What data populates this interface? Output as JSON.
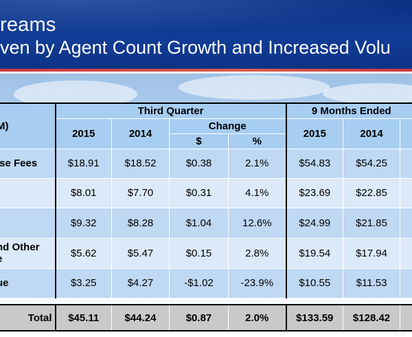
{
  "banner": {
    "title_line1": "reams",
    "title_line2": "ven by Agent Count Growth and Increased Volu"
  },
  "table": {
    "group_headers": {
      "third_quarter": "Third Quarter",
      "nine_months": "9 Months Ended"
    },
    "unit_label": "M)",
    "year_headers": {
      "a": "2015",
      "b": "2014",
      "c": "2015",
      "d": "2014"
    },
    "change_header": "Change",
    "change_sub": {
      "dollar": "$",
      "percent": "%"
    },
    "rows": [
      {
        "label": "ise Fees",
        "label2": "",
        "q2015": "$18.91",
        "q2014": "$18.52",
        "chg": "$0.38",
        "pct": "2.1%",
        "m2015": "$54.83",
        "m2014": "$54.25"
      },
      {
        "label": "",
        "label2": "",
        "q2015": "$8.01",
        "q2014": "$7.70",
        "chg": "$0.31",
        "pct": "4.1%",
        "m2015": "$23.69",
        "m2014": "$22.85"
      },
      {
        "label": "",
        "label2": "",
        "q2015": "$9.32",
        "q2014": "$8.28",
        "chg": "$1.04",
        "pct": "12.6%",
        "m2015": "$24.99",
        "m2014": "$21.85"
      },
      {
        "label": "nd Other",
        "label2": "e",
        "q2015": "$5.62",
        "q2014": "$5.47",
        "chg": "$0.15",
        "pct": "2.8%",
        "m2015": "$19.54",
        "m2014": "$17.94"
      },
      {
        "label": "ue",
        "label2": "",
        "q2015": "$3.25",
        "q2014": "$4.27",
        "chg": "-$1.02",
        "pct": "-23.9%",
        "m2015": "$10.55",
        "m2014": "$11.53"
      }
    ],
    "total": {
      "label": "Total",
      "q2015": "$45.11",
      "q2014": "$44.24",
      "chg": "$0.87",
      "pct": "2.0%",
      "m2015": "$133.59",
      "m2014": "$128.42"
    }
  }
}
